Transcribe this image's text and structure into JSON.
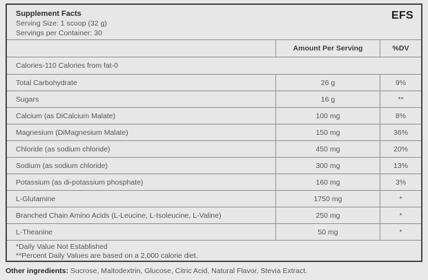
{
  "colors": {
    "page_background": "#e9e9e9",
    "table_background": "#e7e7e7",
    "outer_border": "#454545",
    "inner_border": "#8e8e8e",
    "text": "#565656",
    "bold_text": "#2f2f2f"
  },
  "label": {
    "title": "Supplement Facts",
    "serving_size": "Serving Size: 1 scoop (32 g)",
    "servings_per_container": "Servings per Container: 30",
    "brand": "EFS",
    "columns": {
      "amount": "Amount Per Serving",
      "dv": "%DV"
    },
    "calories_line": "Calories-110 Calories from fat-0",
    "rows": [
      {
        "name": "Total Carbohydrate",
        "amount": "26 g",
        "dv": "9%"
      },
      {
        "name": "Sugars",
        "amount": "16 g",
        "dv": "**"
      },
      {
        "name": "Calcium (as DiCalcium Malate)",
        "amount": "100 mg",
        "dv": "8%"
      },
      {
        "name": "Magnesium (DiMagnesium Malate)",
        "amount": "150 mg",
        "dv": "36%"
      },
      {
        "name": "Chloride (as sodium chloride)",
        "amount": "450 mg",
        "dv": "20%"
      },
      {
        "name": "Sodium (as sodium chloride)",
        "amount": "300 mg",
        "dv": "13%"
      },
      {
        "name": "Potassium (as di-potassium phosphate)",
        "amount": "160 mg",
        "dv": "3%"
      },
      {
        "name": "L-Glutamine",
        "amount": "1750 mg",
        "dv": "*"
      },
      {
        "name": "Branched Chain Amino Acids (L-Leucine, L-Isoleucine, L-Valine)",
        "amount": "250 mg",
        "dv": "*"
      },
      {
        "name": "L-Theanine",
        "amount": "50 mg",
        "dv": "*"
      }
    ],
    "footnotes": [
      "*Daily Value Not Established",
      "**Percent Daily Values are based on a 2,000 calorie diet."
    ]
  },
  "other_ingredients": {
    "label": "Other ingredients:",
    "text": " Sucrose, Maltodextrin, Glucose, Citric Acid, Natural Flavor, Stevia Extract."
  }
}
